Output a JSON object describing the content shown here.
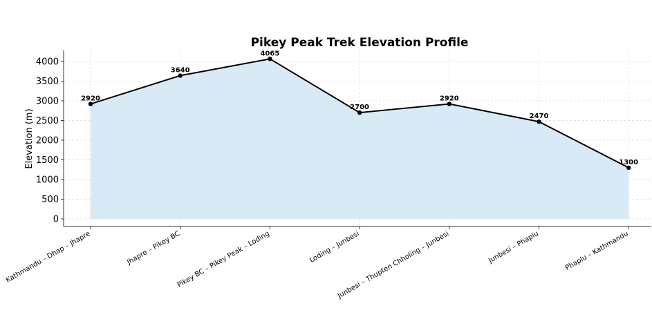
{
  "chart_data": {
    "type": "line",
    "title": "Pikey Peak Trek Elevation Profile",
    "xlabel": "",
    "ylabel": "Elevation (m)",
    "categories": [
      "Kathmandu – Dhap – Jhapre",
      "Jhapre – Pikey BC",
      "Pikey BC – Pikey Peak – Loding",
      "Loding – Junbesi",
      "Junbesi – Thupten Chholing – Junbesi",
      "Junbesi – Phaplu",
      "Phaplu – Kathmandu"
    ],
    "values": [
      2920,
      3640,
      4065,
      2700,
      2920,
      2470,
      1300
    ],
    "data_labels": [
      "2920",
      "3640",
      "4065",
      "2700",
      "2920",
      "2470",
      "1300"
    ],
    "yticks": [
      0,
      500,
      1000,
      1500,
      2000,
      2500,
      3000,
      3500,
      4000
    ],
    "ylim": [
      -200,
      4270
    ],
    "grid": true,
    "fill": true,
    "colors": {
      "line": "#000000",
      "fill": "#d9eaf7",
      "grid": "#d8d8d8"
    }
  }
}
